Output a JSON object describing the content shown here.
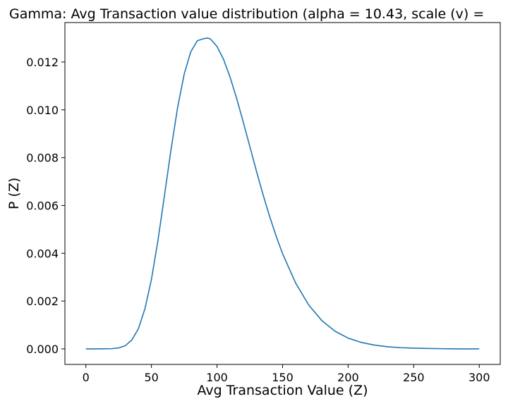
{
  "chart_data": {
    "type": "line",
    "title": "Gamma: Avg Transaction value distribution (alpha = 10.43, scale (v)  =",
    "xlabel": "Avg Transaction Value (Z)",
    "ylabel": "P (Z)",
    "xlim": [
      -16,
      316
    ],
    "ylim": [
      -0.00065,
      0.01365
    ],
    "xticks": [
      0,
      50,
      100,
      150,
      200,
      250,
      300
    ],
    "yticks": [
      0.0,
      0.002,
      0.004,
      0.006,
      0.008,
      0.01,
      0.012
    ],
    "ytick_labels": [
      "0.000",
      "0.002",
      "0.004",
      "0.006",
      "0.008",
      "0.010",
      "0.012"
    ],
    "grid": false,
    "series": [
      {
        "color": "#1f77b4",
        "x": [
          0,
          10,
          20,
          25,
          30,
          35,
          40,
          45,
          50,
          55,
          60,
          65,
          70,
          75,
          80,
          85,
          90,
          93,
          95,
          100,
          105,
          110,
          115,
          120,
          125,
          130,
          135,
          140,
          145,
          150,
          160,
          170,
          180,
          190,
          200,
          210,
          220,
          230,
          240,
          250,
          260,
          270,
          280,
          290,
          300
        ],
        "y": [
          0.0,
          0.0,
          1e-05,
          4e-05,
          0.00013,
          0.00037,
          0.00084,
          0.00167,
          0.00291,
          0.00455,
          0.00644,
          0.00837,
          0.01011,
          0.0115,
          0.01243,
          0.01289,
          0.01298,
          0.013,
          0.01296,
          0.01265,
          0.01211,
          0.01136,
          0.01047,
          0.00949,
          0.00847,
          0.00745,
          0.00647,
          0.00556,
          0.00473,
          0.00398,
          0.00275,
          0.00183,
          0.00118,
          0.00074,
          0.00045,
          0.00027,
          0.00016,
          9e-05,
          5e-05,
          3e-05,
          2e-05,
          1e-05,
          0.0,
          0.0,
          0.0
        ]
      }
    ]
  }
}
